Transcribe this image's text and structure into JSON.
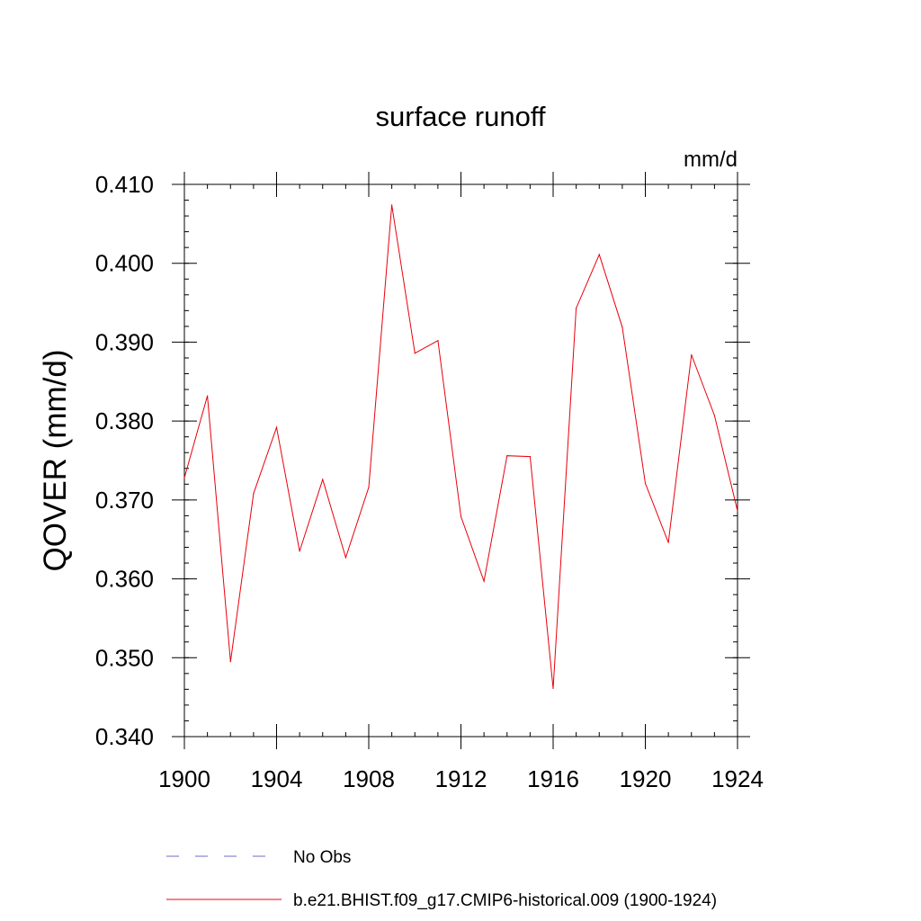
{
  "chart_data": {
    "type": "line",
    "title": "surface runoff",
    "units_label": "mm/d",
    "ylabel": "QOVER  (mm/d)",
    "xlabel": "",
    "xlim": [
      1900,
      1924
    ],
    "ylim": [
      0.34,
      0.41
    ],
    "x_ticks": [
      1900,
      1904,
      1908,
      1912,
      1916,
      1920,
      1924
    ],
    "x_tick_labels": [
      "1900",
      "1904",
      "1908",
      "1912",
      "1916",
      "1920",
      "1924"
    ],
    "y_ticks": [
      0.34,
      0.35,
      0.36,
      0.37,
      0.38,
      0.39,
      0.4,
      0.41
    ],
    "y_tick_labels": [
      "0.340",
      "0.350",
      "0.360",
      "0.370",
      "0.380",
      "0.390",
      "0.400",
      "0.410"
    ],
    "grid": false,
    "series": [
      {
        "name": "b.e21.BHIST.f09_g17.CMIP6-historical.009 (1900-1924)",
        "color": "#e8000b",
        "style": "solid",
        "x": [
          1900,
          1901,
          1902,
          1903,
          1904,
          1905,
          1906,
          1907,
          1908,
          1909,
          1910,
          1911,
          1912,
          1913,
          1914,
          1915,
          1916,
          1917,
          1918,
          1919,
          1920,
          1921,
          1922,
          1923,
          1924
        ],
        "values": [
          0.3728,
          0.3832,
          0.3495,
          0.3708,
          0.3792,
          0.3635,
          0.3726,
          0.3627,
          0.3716,
          0.4074,
          0.3886,
          0.3902,
          0.3679,
          0.3597,
          0.3756,
          0.3755,
          0.3461,
          0.3943,
          0.4011,
          0.3919,
          0.3721,
          0.3646,
          0.3884,
          0.3807,
          0.3686
        ]
      }
    ],
    "legend": [
      {
        "label": "No Obs",
        "color": "#6b6bc4",
        "style": "dashed"
      },
      {
        "label": "b.e21.BHIST.f09_g17.CMIP6-historical.009 (1900-1924)",
        "color": "#e8000b",
        "style": "solid"
      }
    ],
    "legend_position": "bottom"
  }
}
